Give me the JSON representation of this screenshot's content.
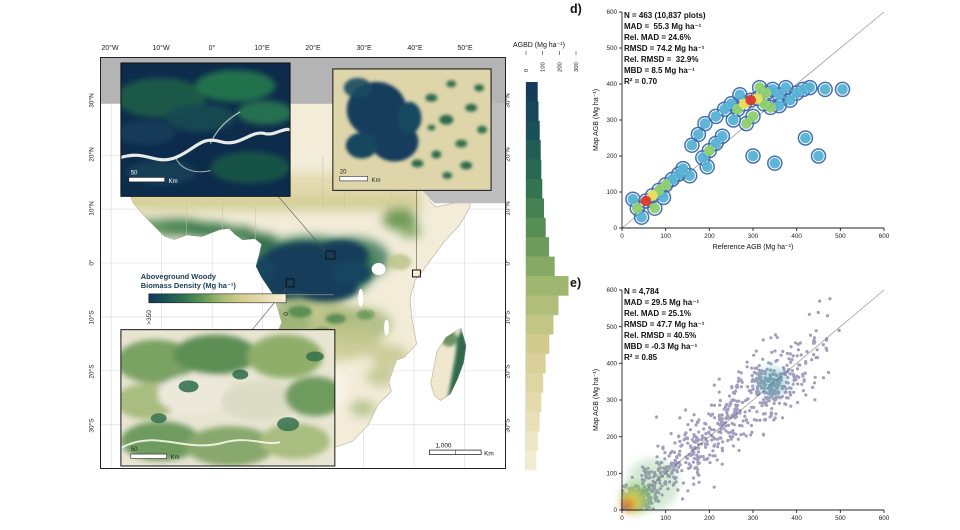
{
  "figure": {
    "background": "#ffffff"
  },
  "map": {
    "lon_labels": [
      "20°W",
      "10°W",
      "0°",
      "10°E",
      "20°E",
      "30°E",
      "40°E",
      "50°E"
    ],
    "lat_labels": [
      "30°N",
      "20°N",
      "10°N",
      "0°",
      "10°S",
      "20°S",
      "30°S"
    ],
    "legend": {
      "title_line1": "Aboveground Woody",
      "title_line2": "Biomass Density (Mg ha⁻¹)",
      "max_label": ">350",
      "min_label": "0"
    },
    "scale_bar": {
      "value": "1,000",
      "unit": "Km"
    },
    "insets": [
      {
        "name": "congo-river-inset",
        "scale_value": "50",
        "scale_unit": "Km"
      },
      {
        "name": "wetland-inset",
        "scale_value": "20",
        "scale_unit": "Km"
      },
      {
        "name": "forest-mosaic-inset",
        "scale_value": "50",
        "scale_unit": "Km"
      }
    ],
    "color_ramp": [
      [
        0,
        "#f6f0dc"
      ],
      [
        60,
        "#e6dcb0"
      ],
      [
        120,
        "#d2cb8f"
      ],
      [
        170,
        "#a6ba74"
      ],
      [
        220,
        "#609455"
      ],
      [
        270,
        "#2e7150"
      ],
      [
        320,
        "#1a4f58"
      ],
      [
        360,
        "#14395b"
      ]
    ]
  },
  "histogram": {
    "title": "AGBD (Mg ha⁻¹)",
    "freq_ticks": [
      0,
      100,
      200,
      300
    ],
    "freq_max": 300,
    "bins": [
      {
        "agbd": 355,
        "freq": 70
      },
      {
        "agbd": 337,
        "freq": 75
      },
      {
        "agbd": 319,
        "freq": 82
      },
      {
        "agbd": 301,
        "freq": 88
      },
      {
        "agbd": 283,
        "freq": 92
      },
      {
        "agbd": 265,
        "freq": 98
      },
      {
        "agbd": 247,
        "freq": 108
      },
      {
        "agbd": 229,
        "freq": 118
      },
      {
        "agbd": 211,
        "freq": 138
      },
      {
        "agbd": 193,
        "freq": 172
      },
      {
        "agbd": 175,
        "freq": 255
      },
      {
        "agbd": 157,
        "freq": 195
      },
      {
        "agbd": 139,
        "freq": 165
      },
      {
        "agbd": 121,
        "freq": 140
      },
      {
        "agbd": 103,
        "freq": 118
      },
      {
        "agbd": 85,
        "freq": 103
      },
      {
        "agbd": 67,
        "freq": 92
      },
      {
        "agbd": 49,
        "freq": 82
      },
      {
        "agbd": 31,
        "freq": 72
      },
      {
        "agbd": 13,
        "freq": 62
      }
    ]
  },
  "chart_data": [
    {
      "id": "d",
      "panel_label": "d)",
      "type": "scatter",
      "style": "density-contours",
      "xlabel": "Reference AGB (Mg ha⁻¹)",
      "ylabel": "Map AGB (Mg ha⁻¹)",
      "xlim": [
        0,
        600
      ],
      "ylim": [
        0,
        600
      ],
      "xticks": [
        0,
        100,
        200,
        300,
        400,
        500,
        600
      ],
      "yticks": [
        0,
        100,
        200,
        300,
        400,
        500,
        600
      ],
      "identity_line": true,
      "stats_lines": [
        "N = 463 (10,837 plots)",
        "MAD =  55.3 Mg ha⁻¹",
        "Rel. MAD = 24.6%",
        "RMSD = 74.2 Mg ha⁻¹",
        "Rel. RMSD =  32.9%",
        "MBD = 8.5 Mg ha⁻¹",
        "R² = 0.70"
      ],
      "level_colors": {
        "1": "#56b3d5",
        "2": "#8ecf6e",
        "3": "#e9e15a",
        "4": "#d83a2a"
      },
      "outline_color": "#2456a8",
      "density_blobs": [
        [
          35,
          55,
          2
        ],
        [
          55,
          75,
          4
        ],
        [
          70,
          90,
          3
        ],
        [
          85,
          105,
          2
        ],
        [
          100,
          120,
          2
        ],
        [
          115,
          135,
          1
        ],
        [
          130,
          150,
          1
        ],
        [
          45,
          30,
          1
        ],
        [
          75,
          55,
          2
        ],
        [
          25,
          80,
          1
        ],
        [
          95,
          85,
          1
        ],
        [
          140,
          165,
          1
        ],
        [
          155,
          145,
          1
        ],
        [
          185,
          195,
          1
        ],
        [
          200,
          215,
          2
        ],
        [
          215,
          235,
          1
        ],
        [
          230,
          255,
          1
        ],
        [
          195,
          170,
          1
        ],
        [
          255,
          300,
          1
        ],
        [
          265,
          330,
          2
        ],
        [
          280,
          345,
          3
        ],
        [
          295,
          355,
          4
        ],
        [
          310,
          360,
          3
        ],
        [
          325,
          345,
          2
        ],
        [
          340,
          335,
          2
        ],
        [
          300,
          310,
          2
        ],
        [
          285,
          290,
          2
        ],
        [
          315,
          390,
          2
        ],
        [
          330,
          375,
          2
        ],
        [
          345,
          385,
          1
        ],
        [
          360,
          370,
          1
        ],
        [
          375,
          390,
          1
        ],
        [
          270,
          370,
          1
        ],
        [
          250,
          345,
          1
        ],
        [
          360,
          340,
          1
        ],
        [
          385,
          355,
          1
        ],
        [
          400,
          375,
          1
        ],
        [
          415,
          385,
          1
        ],
        [
          160,
          230,
          1
        ],
        [
          175,
          260,
          1
        ],
        [
          190,
          290,
          1
        ],
        [
          215,
          310,
          1
        ],
        [
          235,
          330,
          1
        ],
        [
          430,
          390,
          1
        ],
        [
          465,
          385,
          1
        ],
        [
          505,
          385,
          1
        ],
        [
          450,
          200,
          1
        ],
        [
          350,
          180,
          1
        ],
        [
          300,
          200,
          1
        ],
        [
          420,
          250,
          1
        ]
      ]
    },
    {
      "id": "e",
      "panel_label": "e)",
      "type": "scatter",
      "style": "point-cloud",
      "xlabel": "",
      "ylabel": "Map AGB (Mg ha⁻¹)",
      "xlim": [
        0,
        600
      ],
      "ylim": [
        0,
        600
      ],
      "xticks": [
        0,
        100,
        200,
        300,
        400,
        500,
        600
      ],
      "yticks": [
        0,
        100,
        200,
        300,
        400,
        500,
        600
      ],
      "identity_line": true,
      "stats_lines": [
        "N = 4,784",
        "MAD = 29.5 Mg ha⁻¹",
        "Rel. MAD = 25.1%",
        "RMSD = 47.7 Mg ha⁻¹",
        "Rel. RMSD = 40.5%",
        "MBD = -0.3 Mg ha⁻¹",
        "R² = 0.85"
      ],
      "point_color": "#474080",
      "seed": 42,
      "point_clusters": [
        {
          "type": "ridge",
          "n": 430,
          "t0": 0,
          "t1": 400,
          "spread0": 14,
          "spread1": 55
        },
        {
          "type": "gauss",
          "n": 210,
          "cx": 28,
          "cy": 28,
          "sx": 20,
          "sy": 20
        },
        {
          "type": "gauss",
          "n": 130,
          "cx": 345,
          "cy": 348,
          "sx": 32,
          "sy": 28
        },
        {
          "type": "band",
          "n": 170,
          "x0": 40,
          "x1": 480,
          "spread": 95
        }
      ],
      "density_spots": [
        {
          "x": 70,
          "y": 70,
          "r": 60,
          "color": "#5aa85c",
          "op": 0.25
        },
        {
          "x": 32,
          "y": 32,
          "r": 36,
          "color": "#7cc35a",
          "op": 0.55
        },
        {
          "x": 22,
          "y": 22,
          "r": 25,
          "color": "#e8d84a",
          "op": 0.8
        },
        {
          "x": 15,
          "y": 15,
          "r": 15,
          "color": "#e0862a",
          "op": 0.9
        },
        {
          "x": 11,
          "y": 11,
          "r": 8,
          "color": "#cc281c",
          "op": 0.95
        },
        {
          "x": 345,
          "y": 350,
          "r": 32,
          "color": "#3aa8a0",
          "op": 0.4
        }
      ]
    }
  ]
}
